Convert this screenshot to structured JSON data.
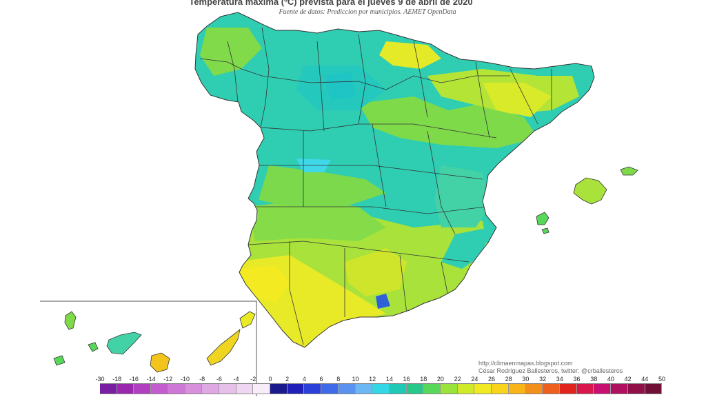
{
  "title": "Temperatura máxima (ºC) prevista para el jueves 9 de abril de 2020",
  "subtitle": "Fuente de datos: Prediccion por municipios. AEMET OpenData",
  "credits": {
    "line1": "http://climaenmapas.blogspot.com",
    "line2": "César Rodríguez Ballesteros, twitter: @crballesteros"
  },
  "legend": {
    "labels": [
      "-30",
      "-18",
      "-16",
      "-14",
      "-12",
      "-10",
      "-8",
      "-6",
      "-4",
      "-2",
      "0",
      "2",
      "4",
      "6",
      "8",
      "10",
      "12",
      "14",
      "16",
      "18",
      "20",
      "22",
      "24",
      "26",
      "28",
      "30",
      "32",
      "34",
      "36",
      "38",
      "40",
      "42",
      "44",
      "50"
    ],
    "colors": [
      "#7a1fa2",
      "#9b27af",
      "#b040c0",
      "#c35ccd",
      "#cf77d6",
      "#d890dc",
      "#e0a8e3",
      "#e7c0ea",
      "#efd7f1",
      "#f7ecf8",
      "#1a1a8c",
      "#2020b8",
      "#2a40d8",
      "#3f6be8",
      "#5a92f0",
      "#6db7f5",
      "#35d7e6",
      "#1fc9b5",
      "#28c88a",
      "#58d85a",
      "#9ae23c",
      "#d0ea2a",
      "#f0ea22",
      "#f8d51c",
      "#f7b51a",
      "#f3901c",
      "#ee5e1c",
      "#e2241e",
      "#d8184c",
      "#c81070",
      "#b01060",
      "#901048",
      "#701036"
    ]
  }
}
